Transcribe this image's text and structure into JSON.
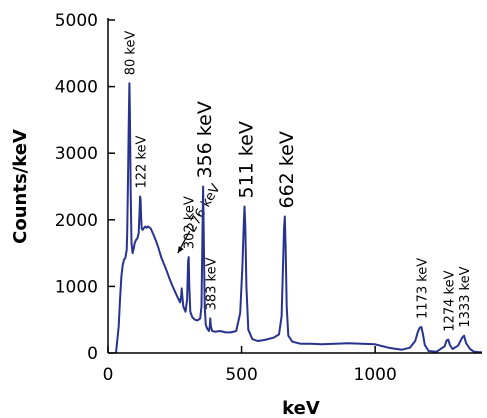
{
  "chart_data": {
    "type": "line",
    "title": "",
    "xlabel": "keV",
    "ylabel": "Counts/keV",
    "xlim": [
      0,
      1400
    ],
    "ylim": [
      0,
      5000
    ],
    "xticks": [
      0,
      500,
      1000
    ],
    "yticks": [
      0,
      1000,
      2000,
      3000,
      4000,
      5000
    ],
    "grid": false,
    "line_color": "#28338f",
    "series": [
      {
        "x": [
          30,
          40,
          45,
          50,
          55,
          60,
          65,
          70,
          72,
          75,
          78,
          80,
          82,
          85,
          88,
          92,
          96,
          100,
          105,
          110,
          115,
          118,
          120,
          122,
          124,
          126,
          130,
          135,
          140,
          145,
          150,
          160,
          170,
          180,
          190,
          200,
          210,
          220,
          230,
          240,
          250,
          260,
          270,
          274,
          276,
          278,
          282,
          290,
          296,
          300,
          302,
          304,
          308,
          315,
          325,
          335,
          345,
          350,
          353,
          356,
          359,
          362,
          366,
          372,
          378,
          381,
          383,
          385,
          390,
          400,
          420,
          440,
          460,
          480,
          495,
          503,
          508,
          511,
          514,
          518,
          525,
          540,
          560,
          580,
          600,
          620,
          640,
          650,
          655,
          659,
          662,
          665,
          669,
          675,
          690,
          720,
          760,
          800,
          850,
          900,
          950,
          1000,
          1050,
          1100,
          1130,
          1150,
          1160,
          1167,
          1173,
          1179,
          1186,
          1200,
          1230,
          1260,
          1268,
          1274,
          1280,
          1290,
          1310,
          1326,
          1333,
          1340,
          1355,
          1370,
          1390,
          1400
        ],
        "values": [
          0,
          400,
          800,
          1150,
          1320,
          1400,
          1430,
          1550,
          1800,
          2600,
          3500,
          4050,
          3600,
          2400,
          1650,
          1500,
          1560,
          1650,
          1700,
          1720,
          1800,
          2100,
          2350,
          2300,
          2050,
          1870,
          1850,
          1880,
          1900,
          1880,
          1900,
          1870,
          1780,
          1680,
          1560,
          1430,
          1330,
          1230,
          1120,
          1020,
          930,
          840,
          760,
          860,
          970,
          860,
          700,
          620,
          800,
          1380,
          1440,
          1050,
          620,
          540,
          500,
          490,
          520,
          700,
          1600,
          2500,
          1600,
          700,
          420,
          360,
          330,
          400,
          520,
          400,
          330,
          320,
          330,
          310,
          310,
          330,
          600,
          1300,
          1900,
          2200,
          1900,
          1000,
          350,
          210,
          180,
          190,
          210,
          230,
          280,
          550,
          1300,
          1850,
          2050,
          1600,
          700,
          260,
          170,
          140,
          140,
          130,
          140,
          145,
          140,
          130,
          80,
          50,
          80,
          180,
          320,
          380,
          390,
          280,
          120,
          30,
          20,
          100,
          190,
          200,
          120,
          60,
          110,
          230,
          260,
          150,
          60,
          20,
          10,
          10
        ]
      }
    ],
    "annotations": [
      {
        "text": "80 keV",
        "x": 80,
        "y": 4050,
        "size": "small"
      },
      {
        "text": "122 keV",
        "x": 122,
        "y": 2350,
        "size": "small"
      },
      {
        "text": "276 keV",
        "x": 276,
        "y": 1380,
        "size": "small",
        "arrow": true
      },
      {
        "text": "302 keV",
        "x": 302,
        "y": 1440,
        "size": "small"
      },
      {
        "text": "356 keV",
        "x": 356,
        "y": 2500,
        "size": "big"
      },
      {
        "text": "383 keV",
        "x": 383,
        "y": 520,
        "size": "small"
      },
      {
        "text": "511 keV",
        "x": 511,
        "y": 2200,
        "size": "big"
      },
      {
        "text": "662 keV",
        "x": 662,
        "y": 2050,
        "size": "big"
      },
      {
        "text": "1173 keV",
        "x": 1173,
        "y": 390,
        "size": "small"
      },
      {
        "text": "1274 keV",
        "x": 1274,
        "y": 200,
        "size": "small"
      },
      {
        "text": "1333 keV",
        "x": 1333,
        "y": 260,
        "size": "small"
      }
    ]
  }
}
